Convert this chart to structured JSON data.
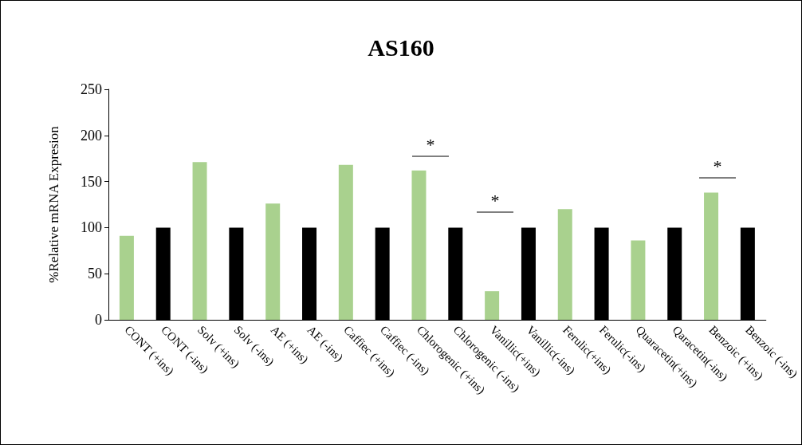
{
  "chart_data": {
    "type": "bar",
    "title": "AS160",
    "ylabel": "%Relative mRNA Expresion",
    "categories": [
      "CONT (+ins)",
      "CONT (-ins)",
      "Solv (+ins)",
      "Solv (-ins)",
      "AE (+ins)",
      "AE (-ins)",
      "Caffiec (+ins)",
      "Caffiec (-ins)",
      "Chlorogenic (+ins)",
      "Chlorogenic (-ins)",
      "Vanillic(+ins)",
      "Vanillic(-ins)",
      "Ferulic(+ins)",
      "Ferulic(-ins)",
      "Quaracetin(+ins)",
      "Qaracetin(-ins)",
      "Benzoic (+ins)",
      "Benzoic (-ins)"
    ],
    "values": [
      91,
      100,
      171,
      100,
      126,
      100,
      168,
      100,
      162,
      100,
      31,
      100,
      120,
      100,
      86,
      100,
      138,
      100
    ],
    "colors": [
      "#a9d18e",
      "#000000",
      "#a9d18e",
      "#000000",
      "#a9d18e",
      "#000000",
      "#a9d18e",
      "#000000",
      "#a9d18e",
      "#000000",
      "#a9d18e",
      "#000000",
      "#a9d18e",
      "#000000",
      "#a9d18e",
      "#000000",
      "#a9d18e",
      "#000000"
    ],
    "ylim": [
      0,
      250
    ],
    "yticks": [
      0,
      50,
      100,
      150,
      200,
      250
    ],
    "grid": false,
    "annotations": [
      "*",
      "*",
      "*"
    ]
  }
}
